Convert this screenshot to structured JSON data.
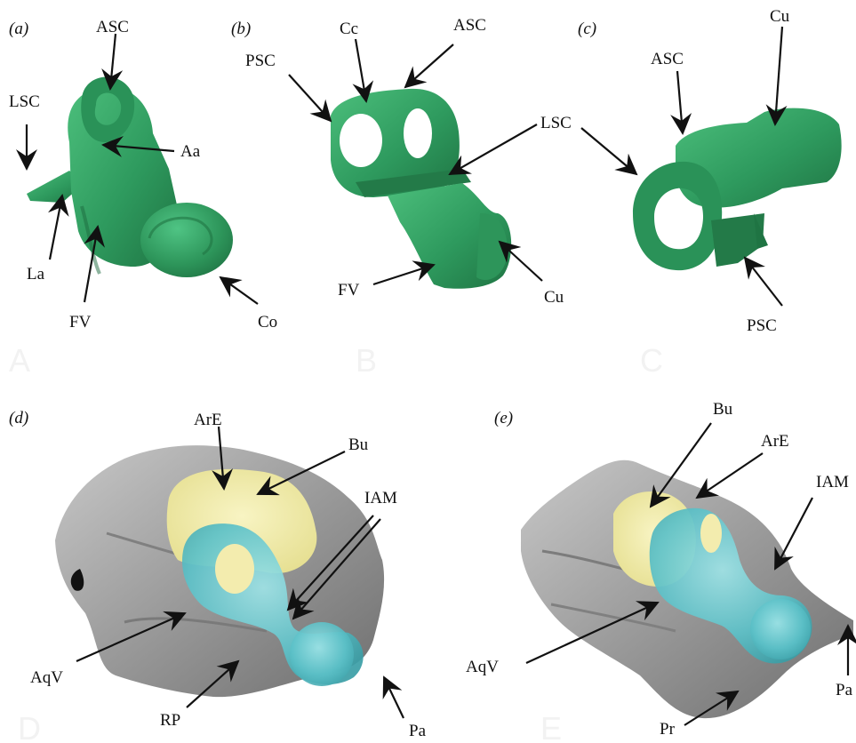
{
  "panels": {
    "a": {
      "tag": "(a)",
      "ghost": "A",
      "labels": {
        "asc": "ASC",
        "lsc": "LSC",
        "aa": "Aa",
        "la": "La",
        "fv": "FV",
        "co": "Co"
      }
    },
    "b": {
      "tag": "(b)",
      "ghost": "B",
      "labels": {
        "psc": "PSC",
        "cc": "Cc",
        "asc": "ASC",
        "lsc": "LSC",
        "fv": "FV",
        "cu": "Cu"
      }
    },
    "c": {
      "tag": "(c)",
      "ghost": "C",
      "labels": {
        "asc": "ASC",
        "cu": "Cu",
        "psc": "PSC"
      }
    },
    "d": {
      "tag": "(d)",
      "ghost": "D",
      "labels": {
        "are": "ArE",
        "bu": "Bu",
        "iam": "IAM",
        "aqv": "AqV",
        "rp": "RP",
        "pa": "Pa"
      }
    },
    "e": {
      "tag": "(e)",
      "ghost": "E",
      "labels": {
        "bu": "Bu",
        "are": "ArE",
        "iam": "IAM",
        "aqv": "AqV",
        "pr": "Pr",
        "pa": "Pa"
      }
    }
  },
  "colors": {
    "inner_ear_green": "#2e9a5e",
    "bone_grey": "#9a9a9a",
    "endocast_yellow": "#f0eba2",
    "labyrinth_cyan": "#6cc9cf"
  }
}
